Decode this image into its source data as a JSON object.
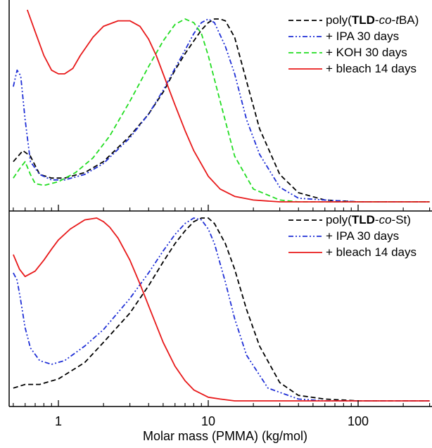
{
  "chart_data": [
    {
      "type": "line",
      "panel": "top",
      "xlabel": "Molar mass (PMMA) (kg/mol)",
      "xscale": "log",
      "xlim": [
        0.5,
        300
      ],
      "ylim": [
        0,
        1.05
      ],
      "ylabel": "",
      "grid": false,
      "legend_position": "top-right",
      "series": [
        {
          "name": "poly(TLD-co-tBA)",
          "label_parts": [
            {
              "t": "poly(",
              "s": "n"
            },
            {
              "t": "TLD",
              "s": "b"
            },
            {
              "t": "-",
              "s": "n"
            },
            {
              "t": "co",
              "s": "i"
            },
            {
              "t": "-",
              "s": "n"
            },
            {
              "t": "t",
              "s": "i"
            },
            {
              "t": "BA)",
              "s": "n"
            }
          ],
          "color": "#000000",
          "dash": "dash",
          "x": [
            0.5,
            0.58,
            0.65,
            0.75,
            0.9,
            1.1,
            1.5,
            2.0,
            3.0,
            4.0,
            5.0,
            6.0,
            7.0,
            8.0,
            9.0,
            10.0,
            11.0,
            12.0,
            13.0,
            15.0,
            18.0,
            22.0,
            30.0,
            40.0,
            60.0,
            100.0,
            200.0,
            300.0
          ],
          "y": [
            0.22,
            0.28,
            0.25,
            0.15,
            0.13,
            0.13,
            0.16,
            0.22,
            0.36,
            0.48,
            0.6,
            0.72,
            0.81,
            0.88,
            0.94,
            0.98,
            1.0,
            1.0,
            0.99,
            0.9,
            0.66,
            0.4,
            0.15,
            0.05,
            0.01,
            0.0,
            0.0,
            0.0
          ]
        },
        {
          "name": "+ IPA 30 days",
          "color": "#1f2fd6",
          "dash": "dashdotdot",
          "x": [
            0.5,
            0.53,
            0.56,
            0.6,
            0.65,
            0.75,
            0.9,
            1.1,
            1.5,
            2.0,
            3.0,
            4.0,
            5.0,
            6.0,
            7.0,
            8.0,
            9.0,
            10.0,
            11.0,
            13.0,
            15.0,
            18.0,
            22.0,
            30.0,
            40.0,
            60.0,
            100.0,
            300.0
          ],
          "y": [
            0.63,
            0.72,
            0.69,
            0.45,
            0.22,
            0.15,
            0.12,
            0.12,
            0.15,
            0.21,
            0.35,
            0.48,
            0.61,
            0.73,
            0.83,
            0.92,
            0.98,
            1.0,
            0.98,
            0.85,
            0.7,
            0.45,
            0.26,
            0.08,
            0.02,
            0.01,
            0.0,
            0.0
          ]
        },
        {
          "name": "+ KOH 30 days",
          "color": "#22dd22",
          "dash": "dash",
          "x": [
            0.5,
            0.55,
            0.6,
            0.65,
            0.7,
            0.8,
            1.0,
            1.3,
            1.7,
            2.2,
            3.0,
            4.0,
            5.0,
            6.0,
            7.0,
            8.0,
            9.0,
            10.0,
            12.0,
            15.0,
            20.0,
            30.0,
            40.0,
            60.0,
            100.0,
            300.0
          ],
          "y": [
            0.13,
            0.18,
            0.22,
            0.15,
            0.1,
            0.09,
            0.11,
            0.16,
            0.24,
            0.36,
            0.55,
            0.74,
            0.88,
            0.97,
            1.0,
            0.98,
            0.92,
            0.8,
            0.55,
            0.25,
            0.07,
            0.01,
            0.0,
            0.0,
            0.0,
            0.0
          ]
        },
        {
          "name": "+ bleach 14 days",
          "color": "#e8191a",
          "dash": "solid",
          "x": [
            0.62,
            0.7,
            0.8,
            0.9,
            1.0,
            1.1,
            1.25,
            1.4,
            1.7,
            2.0,
            2.5,
            3.0,
            3.5,
            4.0,
            4.5,
            5.0,
            6.0,
            7.0,
            8.0,
            10.0,
            12.0,
            15.0,
            20.0,
            30.0,
            50.0,
            100.0,
            300.0
          ],
          "y": [
            1.05,
            0.93,
            0.8,
            0.72,
            0.7,
            0.7,
            0.73,
            0.8,
            0.9,
            0.96,
            0.99,
            0.99,
            0.96,
            0.89,
            0.8,
            0.7,
            0.53,
            0.39,
            0.28,
            0.14,
            0.07,
            0.03,
            0.01,
            0.0,
            0.0,
            0.0,
            0.0
          ]
        }
      ]
    },
    {
      "type": "line",
      "panel": "bottom",
      "xlabel": "Molar mass (PMMA) (kg/mol)",
      "xscale": "log",
      "xlim": [
        0.5,
        300
      ],
      "ylim": [
        0,
        1.05
      ],
      "ylabel": "",
      "grid": false,
      "legend_position": "top-right",
      "series": [
        {
          "name": "poly(TLD-co-St)",
          "label_parts": [
            {
              "t": "poly(",
              "s": "n"
            },
            {
              "t": "TLD",
              "s": "b"
            },
            {
              "t": "-",
              "s": "n"
            },
            {
              "t": "co",
              "s": "i"
            },
            {
              "t": "-St)",
              "s": "n"
            }
          ],
          "color": "#000000",
          "dash": "dash",
          "x": [
            0.5,
            0.6,
            0.75,
            1.0,
            1.5,
            2.0,
            3.0,
            4.0,
            5.0,
            6.0,
            7.0,
            8.0,
            9.0,
            10.0,
            11.0,
            13.0,
            15.0,
            18.0,
            22.0,
            30.0,
            40.0,
            60.0,
            100.0,
            300.0
          ],
          "y": [
            0.07,
            0.09,
            0.09,
            0.12,
            0.21,
            0.32,
            0.48,
            0.63,
            0.76,
            0.86,
            0.93,
            0.98,
            1.0,
            1.0,
            0.97,
            0.86,
            0.72,
            0.5,
            0.3,
            0.1,
            0.03,
            0.01,
            0.0,
            0.0
          ]
        },
        {
          "name": "+ IPA 30 days",
          "color": "#1f2fd6",
          "dash": "dashdotdot",
          "x": [
            0.5,
            0.53,
            0.56,
            0.6,
            0.65,
            0.75,
            0.9,
            1.1,
            1.5,
            2.0,
            3.0,
            4.0,
            5.0,
            6.0,
            7.0,
            8.0,
            9.0,
            10.0,
            11.0,
            13.0,
            15.0,
            18.0,
            25.0,
            40.0,
            60.0,
            100.0,
            300.0
          ],
          "y": [
            0.7,
            0.66,
            0.55,
            0.4,
            0.29,
            0.22,
            0.2,
            0.22,
            0.3,
            0.39,
            0.56,
            0.7,
            0.82,
            0.91,
            0.97,
            1.0,
            0.99,
            0.94,
            0.86,
            0.65,
            0.45,
            0.25,
            0.07,
            0.01,
            0.0,
            0.0,
            0.0
          ]
        },
        {
          "name": "+ bleach 14 days",
          "color": "#e8191a",
          "dash": "solid",
          "x": [
            0.5,
            0.55,
            0.6,
            0.7,
            0.8,
            0.9,
            1.0,
            1.2,
            1.5,
            1.8,
            2.0,
            2.2,
            2.5,
            3.0,
            3.5,
            4.0,
            5.0,
            6.0,
            7.0,
            8.0,
            10.0,
            12.0,
            15.0,
            20.0,
            30.0,
            60.0,
            100.0,
            300.0
          ],
          "y": [
            0.8,
            0.72,
            0.68,
            0.71,
            0.77,
            0.83,
            0.88,
            0.94,
            0.99,
            1.0,
            0.98,
            0.95,
            0.89,
            0.77,
            0.64,
            0.52,
            0.32,
            0.19,
            0.11,
            0.06,
            0.02,
            0.01,
            0.0,
            0.0,
            0.0,
            0.0,
            0.0,
            0.0
          ]
        }
      ]
    }
  ],
  "x_axis": {
    "label": "Molar mass (PMMA) (kg/mol)",
    "tick_labels": [
      {
        "value": 1,
        "label": "1"
      },
      {
        "value": 10,
        "label": "10"
      },
      {
        "value": 100,
        "label": "100"
      }
    ]
  },
  "colors": {
    "black": "#000000",
    "blue": "#1f2fd6",
    "green": "#22dd22",
    "red": "#e8191a"
  }
}
